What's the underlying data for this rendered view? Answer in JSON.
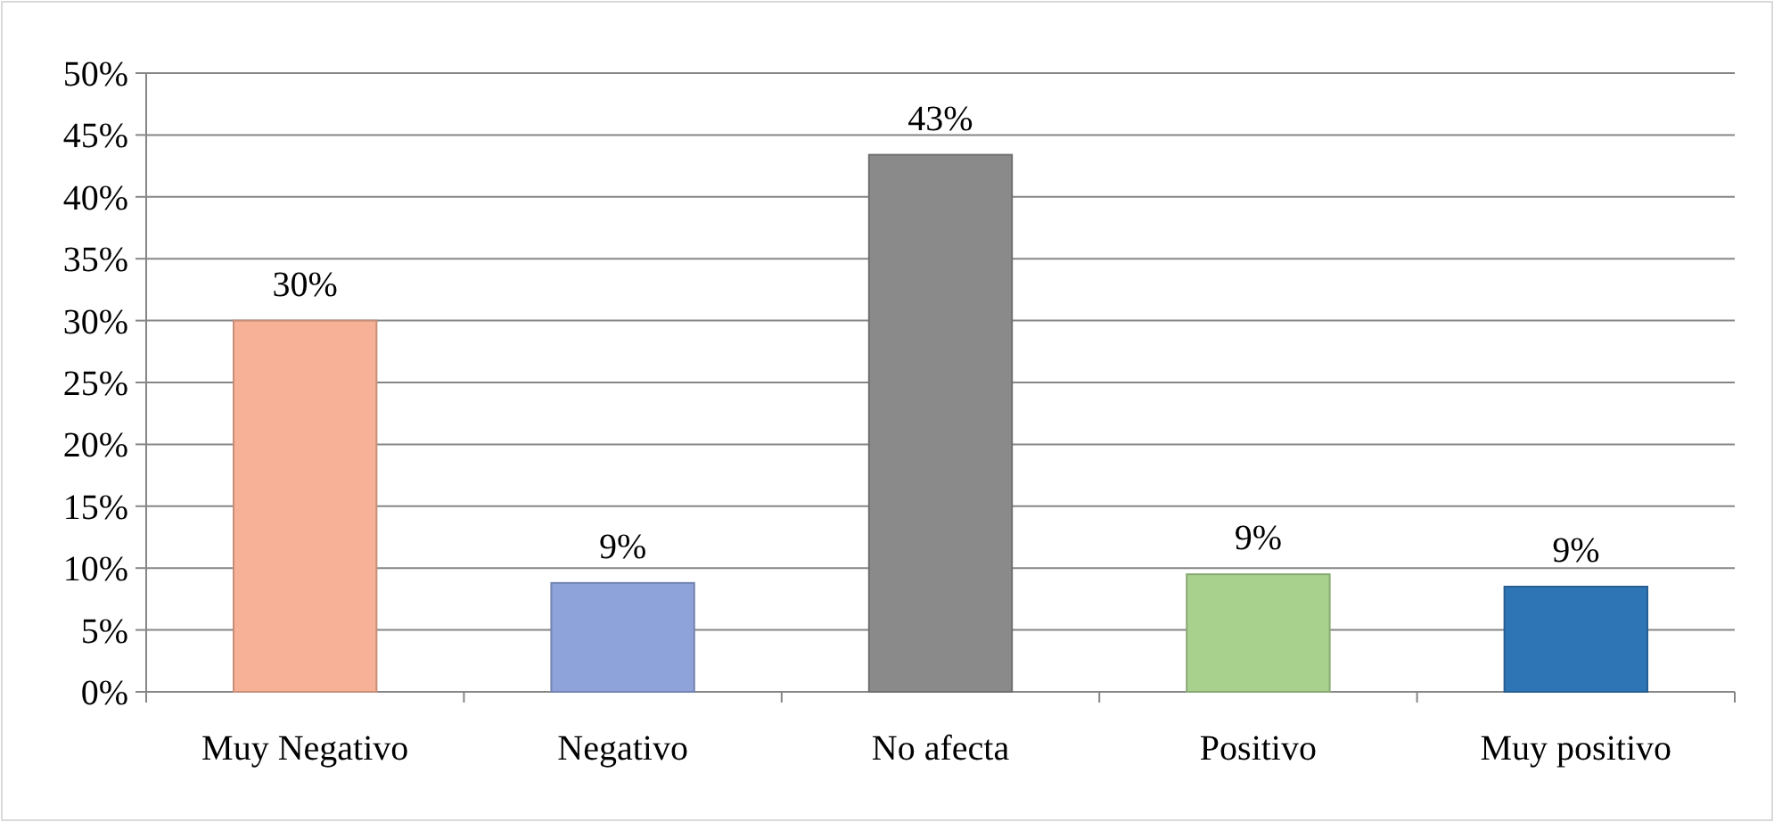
{
  "chart_data": {
    "type": "bar",
    "categories": [
      "Muy Negativo",
      "Negativo",
      "No afecta",
      "Positivo",
      "Muy positivo"
    ],
    "values": [
      30,
      8.8,
      43.4,
      9.5,
      8.5
    ],
    "colors": [
      "#f7b196",
      "#8fa3db",
      "#8a8a8a",
      "#a9d18e",
      "#2e75b6"
    ],
    "value_labels": [
      "30%",
      "9%",
      "43%",
      "9%",
      "9%"
    ],
    "ylim": [
      0,
      50
    ],
    "yticks": [
      {
        "value": 0,
        "label": "0%"
      },
      {
        "value": 5,
        "label": "5%"
      },
      {
        "value": 10,
        "label": "10%"
      },
      {
        "value": 15,
        "label": "15%"
      },
      {
        "value": 20,
        "label": "20%"
      },
      {
        "value": 25,
        "label": "25%"
      },
      {
        "value": 30,
        "label": "30%"
      },
      {
        "value": 35,
        "label": "35%"
      },
      {
        "value": 40,
        "label": "40%"
      },
      {
        "value": 45,
        "label": "45%"
      },
      {
        "value": 50,
        "label": "50%"
      }
    ],
    "grid": "y"
  }
}
